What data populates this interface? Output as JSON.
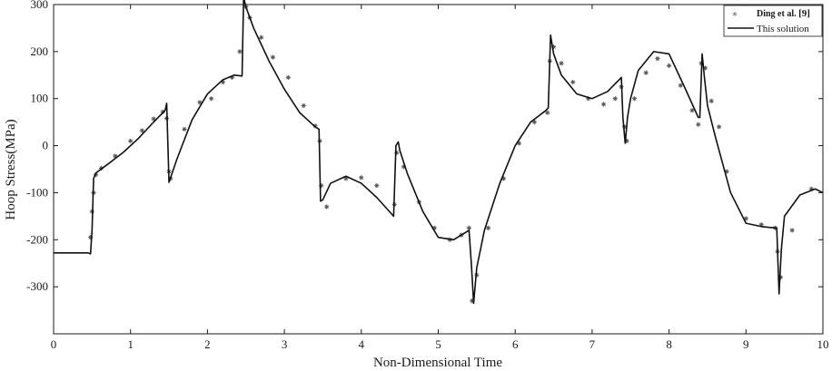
{
  "chart_data": {
    "type": "line",
    "xlabel": "Non-Dimensional Time",
    "ylabel": "Hoop Stress(MPa)",
    "xlim": [
      0,
      10
    ],
    "ylim": [
      -400,
      300
    ],
    "xticks": [
      0,
      1,
      2,
      3,
      4,
      5,
      6,
      7,
      8,
      9,
      10
    ],
    "yticks": [
      -300,
      -200,
      -100,
      0,
      100,
      200,
      300
    ],
    "grid": false,
    "legend_position": "top-right",
    "legend": {
      "ref_name": "Ding et al.",
      "ref_cite": "[9]",
      "solution_name": "This solution"
    },
    "series": [
      {
        "name": "This solution",
        "style": "solid-line",
        "color": "#111111",
        "x": [
          0,
          0.2,
          0.45,
          0.48,
          0.5,
          0.52,
          0.55,
          0.7,
          0.9,
          1.1,
          1.3,
          1.45,
          1.47,
          1.5,
          1.6,
          1.8,
          2.0,
          2.2,
          2.35,
          2.45,
          2.47,
          2.5,
          2.6,
          2.8,
          3.0,
          3.2,
          3.4,
          3.45,
          3.47,
          3.5,
          3.6,
          3.8,
          4.0,
          4.2,
          4.42,
          4.45,
          4.48,
          4.5,
          4.6,
          4.8,
          5.0,
          5.2,
          5.4,
          5.43,
          5.46,
          5.5,
          5.6,
          5.8,
          6.0,
          6.2,
          6.4,
          6.43,
          6.46,
          6.5,
          6.6,
          6.8,
          7.0,
          7.2,
          7.38,
          7.4,
          7.43,
          7.46,
          7.5,
          7.6,
          7.8,
          8.0,
          8.2,
          8.38,
          8.4,
          8.43,
          8.46,
          8.5,
          8.6,
          8.8,
          9.0,
          9.2,
          9.38,
          9.4,
          9.43,
          9.46,
          9.5,
          9.7,
          9.9,
          10.0
        ],
        "y": [
          -228,
          -228,
          -228,
          -230,
          -180,
          -70,
          -58,
          -40,
          -15,
          15,
          50,
          75,
          90,
          -78,
          -30,
          55,
          110,
          140,
          150,
          148,
          315,
          295,
          250,
          180,
          120,
          70,
          40,
          35,
          -118,
          -115,
          -80,
          -65,
          -80,
          -110,
          -150,
          0,
          8,
          -10,
          -60,
          -140,
          -195,
          -200,
          -180,
          -250,
          -335,
          -260,
          -180,
          -80,
          0,
          50,
          75,
          80,
          235,
          195,
          150,
          110,
          100,
          115,
          145,
          60,
          5,
          60,
          100,
          160,
          200,
          195,
          125,
          60,
          60,
          195,
          145,
          85,
          20,
          -100,
          -165,
          -172,
          -175,
          -175,
          -315,
          -220,
          -150,
          -105,
          -92,
          -100
        ]
      },
      {
        "name": "Ding et al.",
        "style": "asterisk-markers",
        "color": "#555555",
        "x": [
          0.48,
          0.5,
          0.52,
          0.55,
          0.62,
          0.8,
          1.0,
          1.15,
          1.3,
          1.42,
          1.47,
          1.5,
          1.52,
          1.7,
          1.9,
          2.05,
          2.2,
          2.32,
          2.42,
          2.5,
          2.55,
          2.7,
          2.85,
          3.05,
          3.25,
          3.4,
          3.46,
          3.48,
          3.55,
          3.8,
          4.0,
          4.2,
          4.43,
          4.46,
          4.55,
          4.75,
          4.95,
          5.15,
          5.3,
          5.4,
          5.44,
          5.5,
          5.65,
          5.85,
          6.05,
          6.25,
          6.42,
          6.45,
          6.5,
          6.6,
          6.75,
          6.95,
          7.15,
          7.3,
          7.38,
          7.42,
          7.45,
          7.55,
          7.7,
          7.85,
          8.0,
          8.15,
          8.3,
          8.38,
          8.42,
          8.47,
          8.55,
          8.65,
          8.75,
          9.0,
          9.2,
          9.38,
          9.41,
          9.45,
          9.6,
          9.85
        ],
        "y": [
          -195,
          -140,
          -100,
          -62,
          -48,
          -22,
          10,
          32,
          57,
          72,
          58,
          -55,
          -70,
          35,
          92,
          100,
          135,
          145,
          200,
          295,
          272,
          230,
          188,
          145,
          85,
          42,
          10,
          -85,
          -130,
          -70,
          -68,
          -85,
          -125,
          -15,
          -45,
          -120,
          -175,
          -200,
          -190,
          -175,
          -330,
          -275,
          -175,
          -70,
          5,
          50,
          70,
          180,
          210,
          175,
          135,
          100,
          88,
          100,
          125,
          40,
          10,
          100,
          155,
          185,
          170,
          128,
          75,
          45,
          175,
          165,
          95,
          40,
          -55,
          -155,
          -168,
          -175,
          -225,
          -280,
          -180,
          -92
        ]
      }
    ]
  }
}
